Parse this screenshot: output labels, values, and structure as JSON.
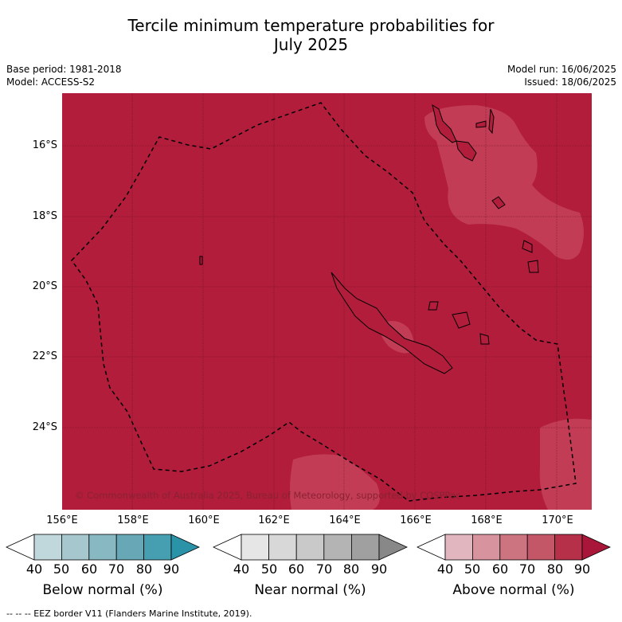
{
  "title_line1": "Tercile minimum temperature probabilities for",
  "title_line2": "July 2025",
  "base_period": "Base period: 1981-2018",
  "model": "Model: ACCESS-S2",
  "model_run": "Model run: 16/06/2025",
  "issued": "Issued: 18/06/2025",
  "lat_labels": [
    "16°S",
    "18°S",
    "20°S",
    "22°S",
    "24°S"
  ],
  "lon_labels": [
    "156°E",
    "158°E",
    "160°E",
    "162°E",
    "164°E",
    "166°E",
    "168°E",
    "170°E"
  ],
  "copyright": "© Commonwealth of Australia 2025, Bureau of Meteorology, supported by COSPPac",
  "colorbars": [
    {
      "label": "Below normal (%)",
      "ticks": [
        "40",
        "50",
        "60",
        "70",
        "80",
        "90"
      ],
      "colors": [
        "#ffffff",
        "#c0d7dc",
        "#a5c7cd",
        "#88b8c2",
        "#68a8b6",
        "#469fb0",
        "#2a93a8"
      ]
    },
    {
      "label": "Near normal (%)",
      "ticks": [
        "40",
        "50",
        "60",
        "70",
        "80",
        "90"
      ],
      "colors": [
        "#ffffff",
        "#e6e6e6",
        "#d8d8d8",
        "#c9c9c9",
        "#b4b4b4",
        "#a0a0a0",
        "#888888"
      ]
    },
    {
      "label": "Above normal (%)",
      "ticks": [
        "40",
        "50",
        "60",
        "70",
        "80",
        "90"
      ],
      "colors": [
        "#ffffff",
        "#e2b6be",
        "#d7939e",
        "#cc7581",
        "#c35767",
        "#b6304a",
        "#a8173a"
      ]
    }
  ],
  "footnote": "--  --  -- EEZ border V11 (Flanders Marine Institute, 2019).",
  "map_colors": {
    "dominant": "#b11d3b",
    "lighter": "#c23c55"
  }
}
